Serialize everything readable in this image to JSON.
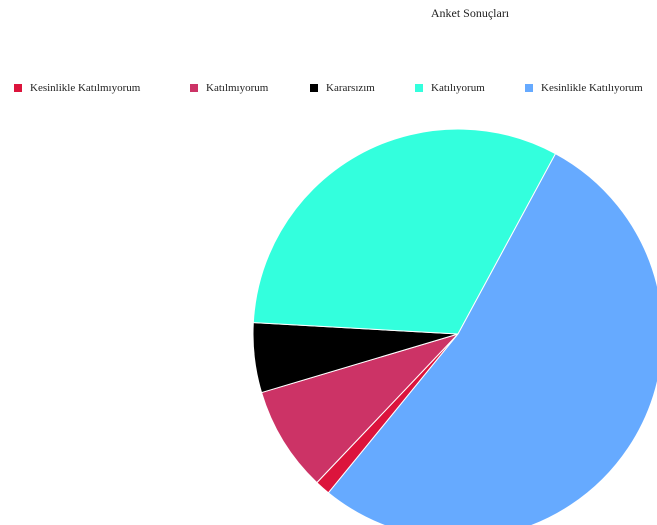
{
  "chart_data": {
    "type": "pie",
    "title": "Anket Sonuçları",
    "legend_position": "top",
    "categories": [
      "Kesinlikle Katılmıyorum",
      "Katılmıyorum",
      "Kararsızım",
      "Katılıyorum",
      "Kesinlikle Katılıyorum"
    ],
    "values": [
      1.2,
      8.3,
      5.5,
      32.0,
      53.0
    ],
    "colors": [
      "#dc143c",
      "#cc3366",
      "#000000",
      "#33ffdd",
      "#66aaff"
    ]
  }
}
